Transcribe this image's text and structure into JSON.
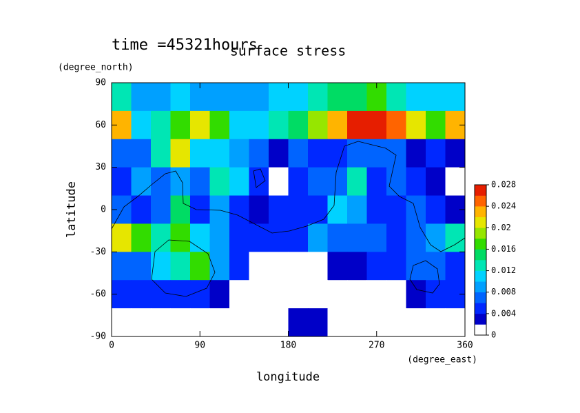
{
  "chart_data": {
    "type": "contour",
    "title": "surface stress",
    "subtitle": "time =45321hours",
    "x_label": "longitude",
    "y_label": "latitude",
    "x_unit": "(degree_east)",
    "y_unit": "(degree_north)",
    "xlim": [
      0,
      360
    ],
    "ylim": [
      -90,
      90
    ],
    "xticks": [
      0,
      90,
      180,
      270,
      360
    ],
    "yticks": [
      90,
      60,
      30,
      0,
      -30,
      -60,
      -90
    ],
    "x": [
      10,
      30,
      50,
      70,
      90,
      110,
      130,
      150,
      170,
      190,
      210,
      230,
      250,
      270,
      290,
      310,
      330,
      350
    ],
    "y": [
      80,
      60,
      40,
      20,
      0,
      -20,
      -40,
      -60,
      -80
    ],
    "z": [
      [
        0.012,
        0.008,
        0.008,
        0.01,
        0.008,
        0.008,
        0.008,
        0.008,
        0.01,
        0.01,
        0.012,
        0.014,
        0.014,
        0.016,
        0.012,
        0.01,
        0.01,
        0.01
      ],
      [
        0.022,
        0.01,
        0.012,
        0.016,
        0.02,
        0.016,
        0.01,
        0.01,
        0.012,
        0.014,
        0.018,
        0.022,
        0.026,
        0.028,
        0.024,
        0.02,
        0.016,
        0.022
      ],
      [
        0.006,
        0.006,
        0.012,
        0.02,
        0.01,
        0.01,
        0.008,
        0.006,
        0.002,
        0.006,
        0.004,
        0.004,
        0.006,
        0.006,
        0.006,
        0.002,
        0.004,
        0.002
      ],
      [
        0.004,
        0.008,
        0.006,
        0.008,
        0.006,
        0.012,
        0.01,
        0.004,
        0,
        0.004,
        0.006,
        0.006,
        0.012,
        0.004,
        0.006,
        0.004,
        0.002,
        0
      ],
      [
        0.006,
        0.004,
        0.006,
        0.014,
        0.004,
        0.008,
        0.004,
        0.002,
        0.004,
        0.004,
        0.004,
        0.01,
        0.008,
        0.004,
        0.004,
        0.006,
        0.004,
        0.002
      ],
      [
        0.02,
        0.016,
        0.012,
        0.016,
        0.01,
        0.008,
        0.004,
        0.004,
        0.004,
        0.004,
        0.008,
        0.006,
        0.006,
        0.006,
        0.004,
        0.006,
        0.008,
        0.012
      ],
      [
        0.006,
        0.006,
        0.01,
        0.012,
        0.016,
        0.008,
        0.004,
        0,
        0,
        0,
        0,
        0.002,
        0.002,
        0.004,
        0.004,
        0.006,
        0.006,
        0.004
      ],
      [
        0.004,
        0.004,
        0.004,
        0.004,
        0.004,
        0.002,
        0,
        0,
        0,
        0,
        0,
        0,
        0,
        0,
        0,
        0.002,
        0.004,
        0.004
      ],
      [
        0,
        0,
        0,
        0,
        0,
        0,
        0,
        0,
        0,
        0.002,
        0.002,
        0,
        0,
        0,
        0,
        0,
        0,
        0
      ]
    ],
    "clim": [
      0,
      0.028
    ],
    "cticks": [
      0,
      0.004,
      0.008,
      0.012,
      0.016,
      0.02,
      0.024,
      0.028
    ],
    "colors": [
      "#ffffff",
      "#0000c8",
      "#0028ff",
      "#0064ff",
      "#00a0ff",
      "#00d2ff",
      "#00e6b4",
      "#00dc64",
      "#32dc00",
      "#96e600",
      "#e6e600",
      "#ffb400",
      "#ff6400",
      "#e61e00"
    ]
  }
}
